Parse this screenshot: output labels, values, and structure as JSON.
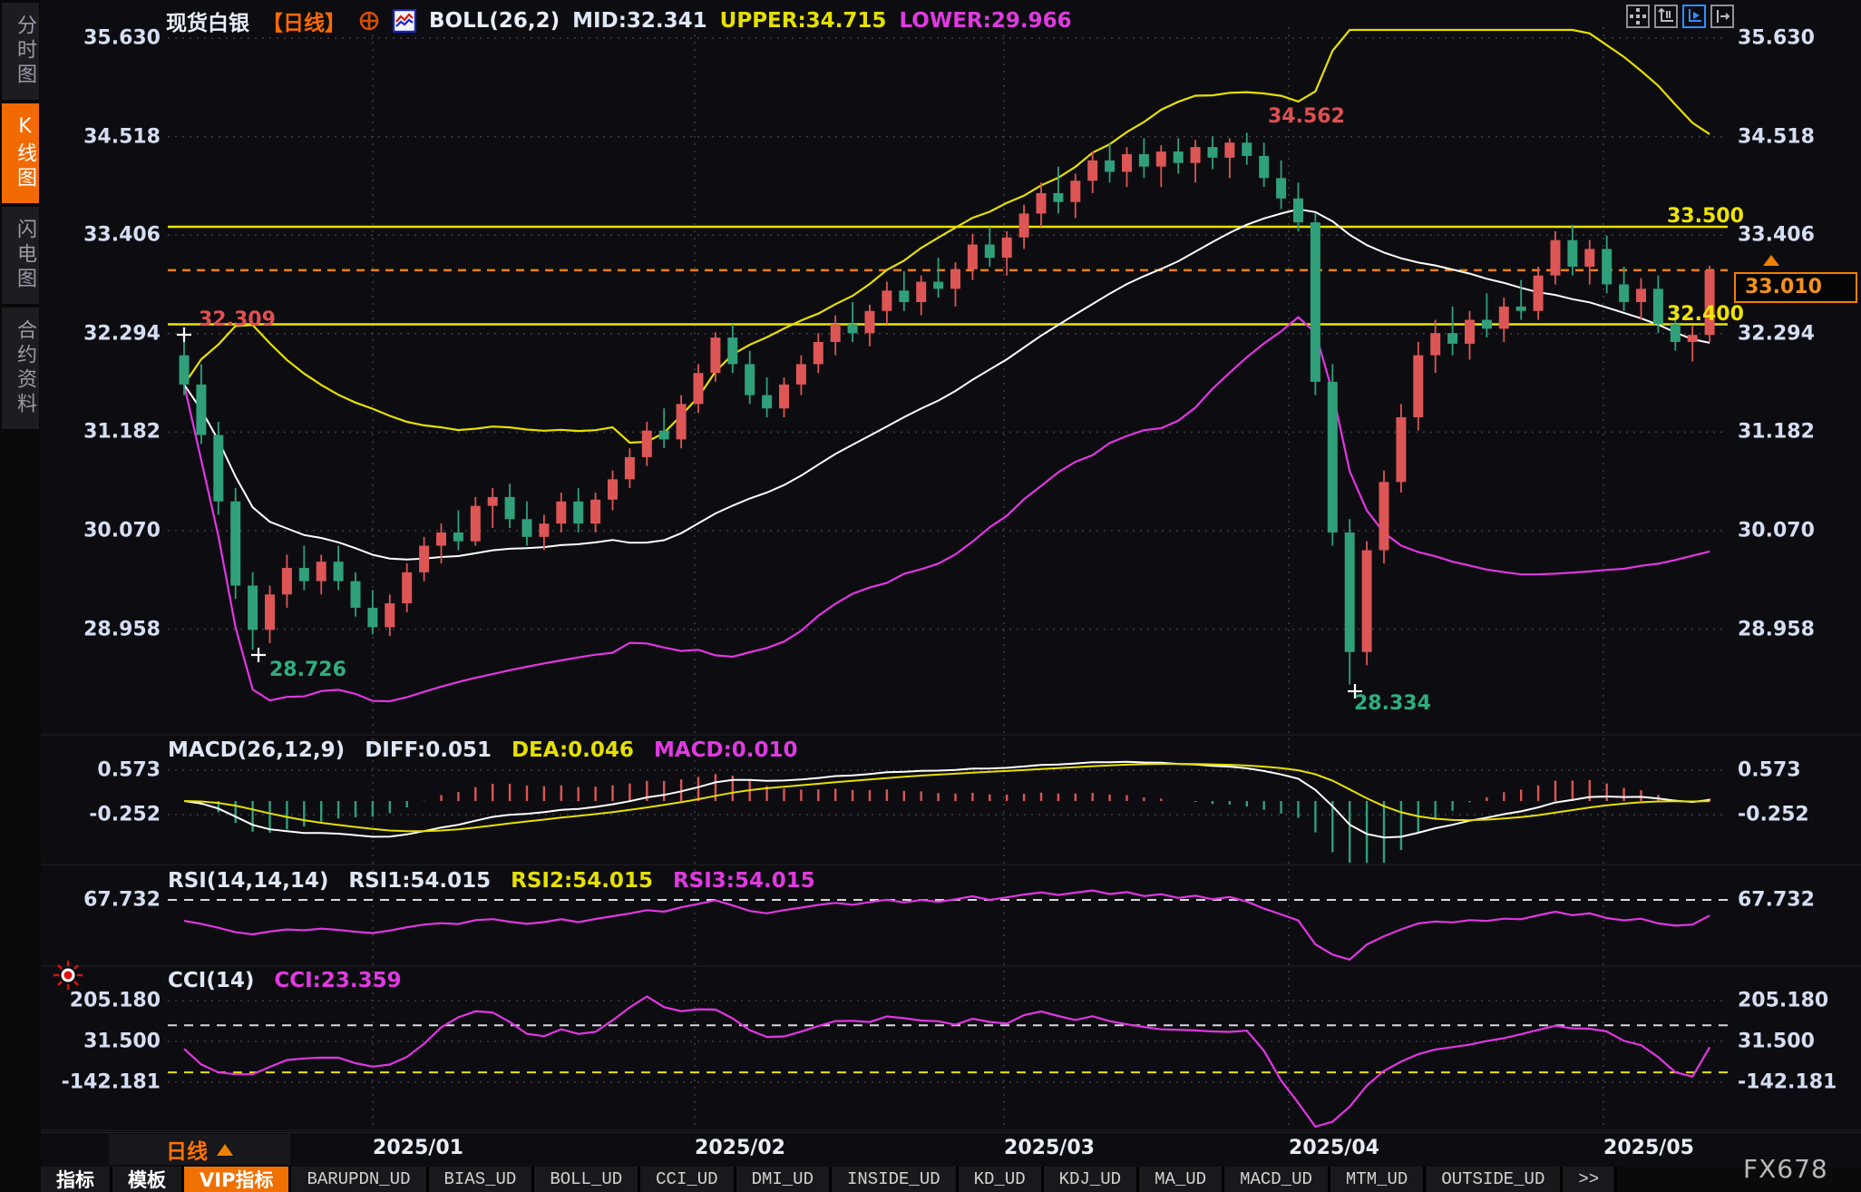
{
  "header": {
    "symbol": "现货白银",
    "period": "【日线】",
    "boll": "BOLL(26,2)",
    "mid": "MID:32.341",
    "upper": "UPPER:34.715",
    "lower": "LOWER:29.966"
  },
  "sidebar": {
    "items": [
      {
        "name": "minute-chart",
        "label": "分时图",
        "active": false
      },
      {
        "name": "kline-chart",
        "label": "K线图",
        "active": true
      },
      {
        "name": "flash-chart",
        "label": "闪电图",
        "active": false
      },
      {
        "name": "contract-info",
        "label": "合约资料",
        "active": false
      }
    ]
  },
  "annotations": {
    "peak": "34.562",
    "first_close": "32.309",
    "low_left": "28.726",
    "low_crash": "28.334",
    "level_high": "33.500",
    "level_low": "32.400",
    "last_price": "33.010"
  },
  "macd": {
    "title": "MACD(26,12,9)",
    "diff": "DIFF:0.051",
    "dea": "DEA:0.046",
    "macd": "MACD:0.010"
  },
  "rsi": {
    "title": "RSI(14,14,14)",
    "rsi1": "RSI1:54.015",
    "rsi2": "RSI2:54.015",
    "rsi3": "RSI3:54.015"
  },
  "cci": {
    "title": "CCI(14)",
    "cci": "CCI:23.359"
  },
  "period_selector": {
    "label": "日线"
  },
  "bottom_tabs": [
    {
      "label": "指标",
      "cn": true,
      "active": false
    },
    {
      "label": "模板",
      "cn": true,
      "active": false
    },
    {
      "label": "VIP指标",
      "cn": true,
      "active": true
    },
    {
      "label": "BARUPDN_UD",
      "cn": false,
      "active": false
    },
    {
      "label": "BIAS_UD",
      "cn": false,
      "active": false
    },
    {
      "label": "BOLL_UD",
      "cn": false,
      "active": false
    },
    {
      "label": "CCI_UD",
      "cn": false,
      "active": false
    },
    {
      "label": "DMI_UD",
      "cn": false,
      "active": false
    },
    {
      "label": "INSIDE_UD",
      "cn": false,
      "active": false
    },
    {
      "label": "KD_UD",
      "cn": false,
      "active": false
    },
    {
      "label": "KDJ_UD",
      "cn": false,
      "active": false
    },
    {
      "label": "MA_UD",
      "cn": false,
      "active": false
    },
    {
      "label": "MACD_UD",
      "cn": false,
      "active": false
    },
    {
      "label": "MTM_UD",
      "cn": false,
      "active": false
    },
    {
      "label": "OUTSIDE_UD",
      "cn": false,
      "active": false
    },
    {
      "label": ">>",
      "cn": false,
      "active": false
    }
  ],
  "watermark": "FX678",
  "colors": {
    "up": "#dd5555",
    "down": "#2fa07a",
    "band_upper": "#e6e000",
    "band_mid": "#ffffff",
    "band_lower": "#e236e2",
    "level_line": "#e8e400",
    "last_price_line": "#f08000",
    "grid": "#3d3d46",
    "accent_orange": "#f26900",
    "magenta": "#e236e2"
  },
  "chart_data": {
    "type": "candlestick",
    "symbol": "现货白银",
    "interval": "日线",
    "y_ticks": [
      35.63,
      34.518,
      33.406,
      32.294,
      31.182,
      30.07,
      28.958
    ],
    "x_labels": [
      "2025/01",
      "2025/02",
      "2025/03",
      "2025/04",
      "2025/05"
    ],
    "levels": {
      "resistance": 33.5,
      "support": 32.4,
      "last_price": 33.01,
      "boll_upper": 34.715,
      "boll_mid": 32.341,
      "boll_lower": 29.966,
      "marked_high": 34.562,
      "marked_lows": [
        28.726,
        28.334
      ],
      "left_label": 32.309
    },
    "candles": [
      [
        32.05,
        32.31,
        31.6,
        31.72
      ],
      [
        31.72,
        31.95,
        31.05,
        31.15
      ],
      [
        31.15,
        31.3,
        30.25,
        30.4
      ],
      [
        30.4,
        30.55,
        29.3,
        29.45
      ],
      [
        29.45,
        29.6,
        28.726,
        28.95
      ],
      [
        28.95,
        29.45,
        28.8,
        29.35
      ],
      [
        29.35,
        29.8,
        29.2,
        29.65
      ],
      [
        29.65,
        29.9,
        29.4,
        29.5
      ],
      [
        29.5,
        29.8,
        29.35,
        29.72
      ],
      [
        29.72,
        29.9,
        29.4,
        29.5
      ],
      [
        29.5,
        29.6,
        29.1,
        29.2
      ],
      [
        29.2,
        29.4,
        28.9,
        28.98
      ],
      [
        28.98,
        29.35,
        28.88,
        29.25
      ],
      [
        29.25,
        29.7,
        29.15,
        29.6
      ],
      [
        29.6,
        30.0,
        29.5,
        29.9
      ],
      [
        29.9,
        30.15,
        29.7,
        30.05
      ],
      [
        30.05,
        30.3,
        29.85,
        29.95
      ],
      [
        29.95,
        30.45,
        29.9,
        30.35
      ],
      [
        30.35,
        30.55,
        30.1,
        30.45
      ],
      [
        30.45,
        30.6,
        30.1,
        30.2
      ],
      [
        30.2,
        30.4,
        29.9,
        30.0
      ],
      [
        30.0,
        30.25,
        29.85,
        30.15
      ],
      [
        30.15,
        30.5,
        30.05,
        30.4
      ],
      [
        30.4,
        30.55,
        30.05,
        30.15
      ],
      [
        30.15,
        30.5,
        30.05,
        30.42
      ],
      [
        30.42,
        30.75,
        30.3,
        30.65
      ],
      [
        30.65,
        31.0,
        30.55,
        30.9
      ],
      [
        30.9,
        31.3,
        30.8,
        31.2
      ],
      [
        31.2,
        31.45,
        31.0,
        31.1
      ],
      [
        31.1,
        31.6,
        31.0,
        31.5
      ],
      [
        31.5,
        31.95,
        31.4,
        31.85
      ],
      [
        31.85,
        32.31,
        31.75,
        32.25
      ],
      [
        32.25,
        32.4,
        31.85,
        31.95
      ],
      [
        31.95,
        32.1,
        31.5,
        31.6
      ],
      [
        31.6,
        31.8,
        31.35,
        31.45
      ],
      [
        31.45,
        31.8,
        31.35,
        31.72
      ],
      [
        31.72,
        32.05,
        31.6,
        31.95
      ],
      [
        31.95,
        32.3,
        31.85,
        32.2
      ],
      [
        32.2,
        32.5,
        32.05,
        32.4
      ],
      [
        32.4,
        32.65,
        32.2,
        32.3
      ],
      [
        32.3,
        32.62,
        32.15,
        32.55
      ],
      [
        32.55,
        32.88,
        32.4,
        32.78
      ],
      [
        32.78,
        33.0,
        32.55,
        32.65
      ],
      [
        32.65,
        32.95,
        32.5,
        32.88
      ],
      [
        32.88,
        33.15,
        32.7,
        32.8
      ],
      [
        32.8,
        33.1,
        32.6,
        33.02
      ],
      [
        33.02,
        33.42,
        32.9,
        33.3
      ],
      [
        33.3,
        33.5,
        33.05,
        33.15
      ],
      [
        33.15,
        33.45,
        32.95,
        33.38
      ],
      [
        33.38,
        33.75,
        33.25,
        33.65
      ],
      [
        33.65,
        34.0,
        33.5,
        33.88
      ],
      [
        33.88,
        34.18,
        33.65,
        33.78
      ],
      [
        33.78,
        34.1,
        33.6,
        34.02
      ],
      [
        34.02,
        34.35,
        33.88,
        34.25
      ],
      [
        34.25,
        34.45,
        34.0,
        34.12
      ],
      [
        34.12,
        34.4,
        33.95,
        34.32
      ],
      [
        34.32,
        34.5,
        34.05,
        34.18
      ],
      [
        34.18,
        34.42,
        33.95,
        34.35
      ],
      [
        34.35,
        34.5,
        34.1,
        34.22
      ],
      [
        34.22,
        34.48,
        34.0,
        34.4
      ],
      [
        34.4,
        34.52,
        34.15,
        34.28
      ],
      [
        34.28,
        34.5,
        34.05,
        34.45
      ],
      [
        34.45,
        34.562,
        34.2,
        34.3
      ],
      [
        34.3,
        34.45,
        33.95,
        34.05
      ],
      [
        34.05,
        34.25,
        33.7,
        33.82
      ],
      [
        33.82,
        34.0,
        33.45,
        33.55
      ],
      [
        33.55,
        33.65,
        31.6,
        31.75
      ],
      [
        31.75,
        31.95,
        29.9,
        30.05
      ],
      [
        30.05,
        30.2,
        28.334,
        28.7
      ],
      [
        28.7,
        29.95,
        28.55,
        29.85
      ],
      [
        29.85,
        30.75,
        29.7,
        30.62
      ],
      [
        30.62,
        31.5,
        30.5,
        31.35
      ],
      [
        31.35,
        32.2,
        31.2,
        32.05
      ],
      [
        32.05,
        32.45,
        31.85,
        32.3
      ],
      [
        32.3,
        32.6,
        32.05,
        32.18
      ],
      [
        32.18,
        32.55,
        32.0,
        32.45
      ],
      [
        32.45,
        32.75,
        32.25,
        32.35
      ],
      [
        32.35,
        32.7,
        32.2,
        32.6
      ],
      [
        32.6,
        32.9,
        32.45,
        32.55
      ],
      [
        32.55,
        33.05,
        32.45,
        32.95
      ],
      [
        32.95,
        33.45,
        32.85,
        33.35
      ],
      [
        33.35,
        33.52,
        32.95,
        33.05
      ],
      [
        33.05,
        33.35,
        32.85,
        33.25
      ],
      [
        33.25,
        33.4,
        32.75,
        32.85
      ],
      [
        32.85,
        33.05,
        32.55,
        32.65
      ],
      [
        32.65,
        32.92,
        32.45,
        32.8
      ],
      [
        32.8,
        32.95,
        32.3,
        32.4
      ],
      [
        32.4,
        32.6,
        32.1,
        32.2
      ],
      [
        32.2,
        32.38,
        31.98,
        32.28
      ],
      [
        32.28,
        33.06,
        32.2,
        33.01
      ]
    ],
    "panels": {
      "boll": {
        "params": [
          26,
          2
        ]
      },
      "macd": {
        "params": [
          26,
          12,
          9
        ],
        "diff": 0.051,
        "dea": 0.046,
        "macd": 0.01,
        "y_ticks": [
          0.573,
          -0.252
        ]
      },
      "rsi": {
        "params": [
          14,
          14,
          14
        ],
        "values": [
          54.015,
          54.015,
          54.015
        ],
        "y_ticks": [
          67.732
        ]
      },
      "cci": {
        "params": [
          14
        ],
        "value": 23.359,
        "y_ticks": [
          205.18,
          31.5,
          -142.181
        ],
        "guide_levels": [
          100,
          -100
        ]
      }
    }
  }
}
